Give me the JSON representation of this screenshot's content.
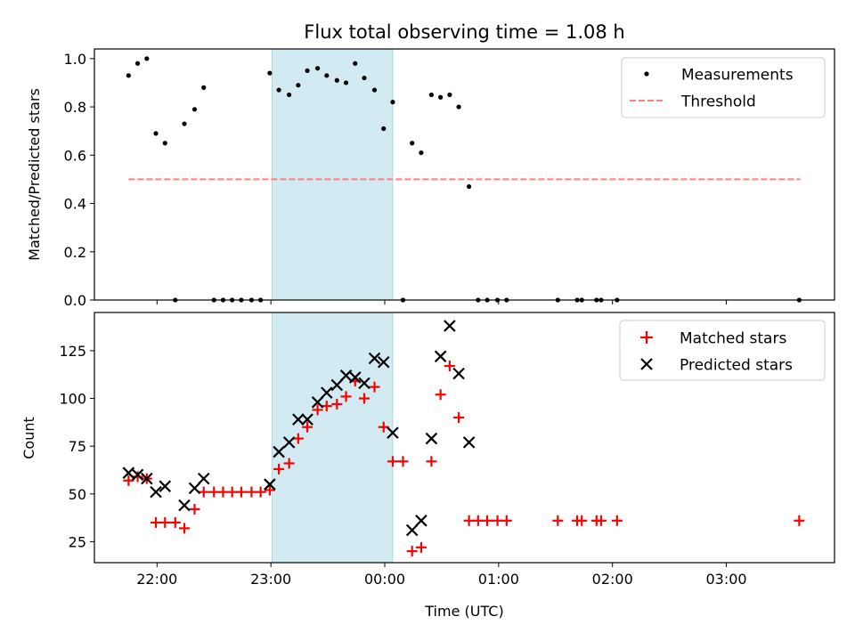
{
  "title": "Flux total observing time = 1.08 h",
  "colors": {
    "measurement": "#000000",
    "threshold": "#ff7f7f",
    "matched": "#ff0000",
    "predicted": "#000000",
    "shade": "#add8e6"
  },
  "chart_data": [
    {
      "type": "scatter",
      "name": "ratio",
      "ylabel": "Matched/Predicted stars",
      "ylim": [
        0,
        1.04
      ],
      "yticks": [
        0.0,
        0.2,
        0.4,
        0.6,
        0.8,
        1.0
      ],
      "ytick_labels": [
        "0.0",
        "0.2",
        "0.4",
        "0.6",
        "0.8",
        "1.0"
      ],
      "x_unit": "hours after 00:00 UTC (negative = before midnight)",
      "shaded_span": [
        -0.99,
        0.07
      ],
      "legend": [
        "Measurements",
        "Threshold"
      ],
      "threshold": {
        "value": 0.5,
        "x_range": [
          -2.25,
          3.65
        ]
      },
      "measurements": [
        [
          -2.25,
          0.93
        ],
        [
          -2.17,
          0.98
        ],
        [
          -2.09,
          1.0
        ],
        [
          -2.01,
          0.69
        ],
        [
          -1.93,
          0.65
        ],
        [
          -1.84,
          0.0
        ],
        [
          -1.76,
          0.73
        ],
        [
          -1.67,
          0.79
        ],
        [
          -1.59,
          0.88
        ],
        [
          -1.5,
          0.0
        ],
        [
          -1.42,
          0.0
        ],
        [
          -1.34,
          0.0
        ],
        [
          -1.26,
          0.0
        ],
        [
          -1.17,
          0.0
        ],
        [
          -1.09,
          0.0
        ],
        [
          -1.01,
          0.94
        ],
        [
          -0.93,
          0.87
        ],
        [
          -0.84,
          0.85
        ],
        [
          -0.76,
          0.89
        ],
        [
          -0.68,
          0.95
        ],
        [
          -0.59,
          0.96
        ],
        [
          -0.51,
          0.93
        ],
        [
          -0.42,
          0.91
        ],
        [
          -0.34,
          0.9
        ],
        [
          -0.26,
          0.98
        ],
        [
          -0.18,
          0.92
        ],
        [
          -0.09,
          0.87
        ],
        [
          -0.01,
          0.71
        ],
        [
          0.07,
          0.82
        ],
        [
          0.16,
          0.0
        ],
        [
          0.24,
          0.65
        ],
        [
          0.32,
          0.61
        ],
        [
          0.41,
          0.85
        ],
        [
          0.49,
          0.84
        ],
        [
          0.57,
          0.85
        ],
        [
          0.65,
          0.8
        ],
        [
          0.74,
          0.47
        ],
        [
          0.82,
          0.0
        ],
        [
          0.9,
          0.0
        ],
        [
          0.99,
          0.0
        ],
        [
          1.07,
          0.0
        ],
        [
          1.52,
          0.0
        ],
        [
          1.69,
          0.0
        ],
        [
          1.73,
          0.0
        ],
        [
          1.86,
          0.0
        ],
        [
          1.9,
          0.0
        ],
        [
          2.04,
          0.0
        ],
        [
          3.64,
          0.0
        ]
      ]
    },
    {
      "type": "scatter",
      "name": "counts",
      "ylabel": "Count",
      "xlabel": "Time (UTC)",
      "ylim": [
        14,
        145
      ],
      "yticks": [
        25,
        50,
        75,
        100,
        125
      ],
      "ytick_labels": [
        "25",
        "50",
        "75",
        "100",
        "125"
      ],
      "xlim": [
        -2.55,
        3.95
      ],
      "xticks": [
        -2,
        -1,
        0,
        1,
        2,
        3
      ],
      "xtick_labels": [
        "22:00",
        "23:00",
        "00:00",
        "01:00",
        "02:00",
        "03:00"
      ],
      "shaded_span": [
        -0.99,
        0.07
      ],
      "legend": [
        "Matched stars",
        "Predicted stars"
      ],
      "series": [
        {
          "name": "Matched stars",
          "marker": "plus",
          "points": [
            [
              -2.25,
              57
            ],
            [
              -2.17,
              59
            ],
            [
              -2.09,
              58
            ],
            [
              -2.01,
              35
            ],
            [
              -1.93,
              35
            ],
            [
              -1.84,
              35
            ],
            [
              -1.76,
              32
            ],
            [
              -1.67,
              42
            ],
            [
              -1.59,
              51
            ],
            [
              -1.5,
              51
            ],
            [
              -1.42,
              51
            ],
            [
              -1.34,
              51
            ],
            [
              -1.26,
              51
            ],
            [
              -1.17,
              51
            ],
            [
              -1.09,
              51
            ],
            [
              -1.01,
              52
            ],
            [
              -0.93,
              63
            ],
            [
              -0.84,
              66
            ],
            [
              -0.76,
              79
            ],
            [
              -0.68,
              85
            ],
            [
              -0.59,
              94
            ],
            [
              -0.51,
              96
            ],
            [
              -0.42,
              97
            ],
            [
              -0.34,
              101
            ],
            [
              -0.26,
              109
            ],
            [
              -0.18,
              100
            ],
            [
              -0.09,
              106
            ],
            [
              -0.01,
              85
            ],
            [
              0.07,
              67
            ],
            [
              0.16,
              67
            ],
            [
              0.24,
              20
            ],
            [
              0.32,
              22
            ],
            [
              0.41,
              67
            ],
            [
              0.49,
              102
            ],
            [
              0.57,
              117
            ],
            [
              0.65,
              90
            ],
            [
              0.74,
              36
            ],
            [
              0.82,
              36
            ],
            [
              0.9,
              36
            ],
            [
              0.99,
              36
            ],
            [
              1.07,
              36
            ],
            [
              1.52,
              36
            ],
            [
              1.69,
              36
            ],
            [
              1.73,
              36
            ],
            [
              1.86,
              36
            ],
            [
              1.9,
              36
            ],
            [
              2.04,
              36
            ],
            [
              3.64,
              36
            ]
          ]
        },
        {
          "name": "Predicted stars",
          "marker": "x",
          "points": [
            [
              -2.25,
              61
            ],
            [
              -2.17,
              60
            ],
            [
              -2.09,
              58
            ],
            [
              -2.01,
              51
            ],
            [
              -1.93,
              54
            ],
            [
              -1.76,
              44
            ],
            [
              -1.67,
              53
            ],
            [
              -1.59,
              58
            ],
            [
              -1.01,
              55
            ],
            [
              -0.93,
              72
            ],
            [
              -0.84,
              77
            ],
            [
              -0.76,
              89
            ],
            [
              -0.68,
              89
            ],
            [
              -0.59,
              98
            ],
            [
              -0.51,
              103
            ],
            [
              -0.42,
              107
            ],
            [
              -0.34,
              112
            ],
            [
              -0.26,
              111
            ],
            [
              -0.18,
              108
            ],
            [
              -0.09,
              121
            ],
            [
              -0.01,
              119
            ],
            [
              0.07,
              82
            ],
            [
              0.24,
              31
            ],
            [
              0.32,
              36
            ],
            [
              0.41,
              79
            ],
            [
              0.49,
              122
            ],
            [
              0.57,
              138
            ],
            [
              0.65,
              113
            ],
            [
              0.74,
              77
            ]
          ]
        }
      ]
    }
  ]
}
